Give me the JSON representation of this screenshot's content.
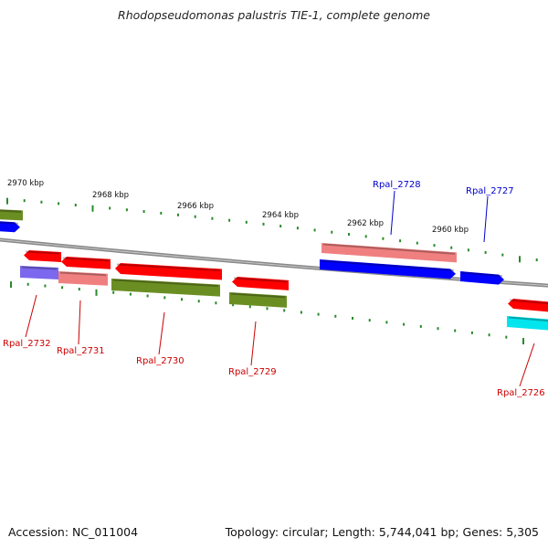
{
  "title": "Rhodopseudomonas palustris TIE-1, complete genome",
  "accession": "Accession: NC_011004",
  "topology": "Topology: circular; Length: 5,744,041 bp; Genes: 5,305",
  "colors": {
    "backbone": "#888888",
    "tick": "#2a8a2a",
    "label_forward": "#0000cc",
    "label_reverse": "#cc0000",
    "red": "#ff0000",
    "pink": "#f08080",
    "blue": "#0000ff",
    "lavender": "#7b68ee",
    "olive": "#6b8e23",
    "cyan": "#00e5ee"
  },
  "scale_labels": [
    "2970 kbp",
    "2968 kbp",
    "2966 kbp",
    "2964 kbp",
    "2962 kbp",
    "2960 kbp"
  ],
  "gene_labels": [
    {
      "text": "Rpal_2728",
      "strand": "forward"
    },
    {
      "text": "Rpal_2727",
      "strand": "forward"
    },
    {
      "text": "Rpal_2732",
      "strand": "reverse"
    },
    {
      "text": "Rpal_2731",
      "strand": "reverse"
    },
    {
      "text": "Rpal_2730",
      "strand": "reverse"
    },
    {
      "text": "Rpal_2729",
      "strand": "reverse"
    },
    {
      "text": "Rpal_2726",
      "strand": "reverse"
    }
  ]
}
